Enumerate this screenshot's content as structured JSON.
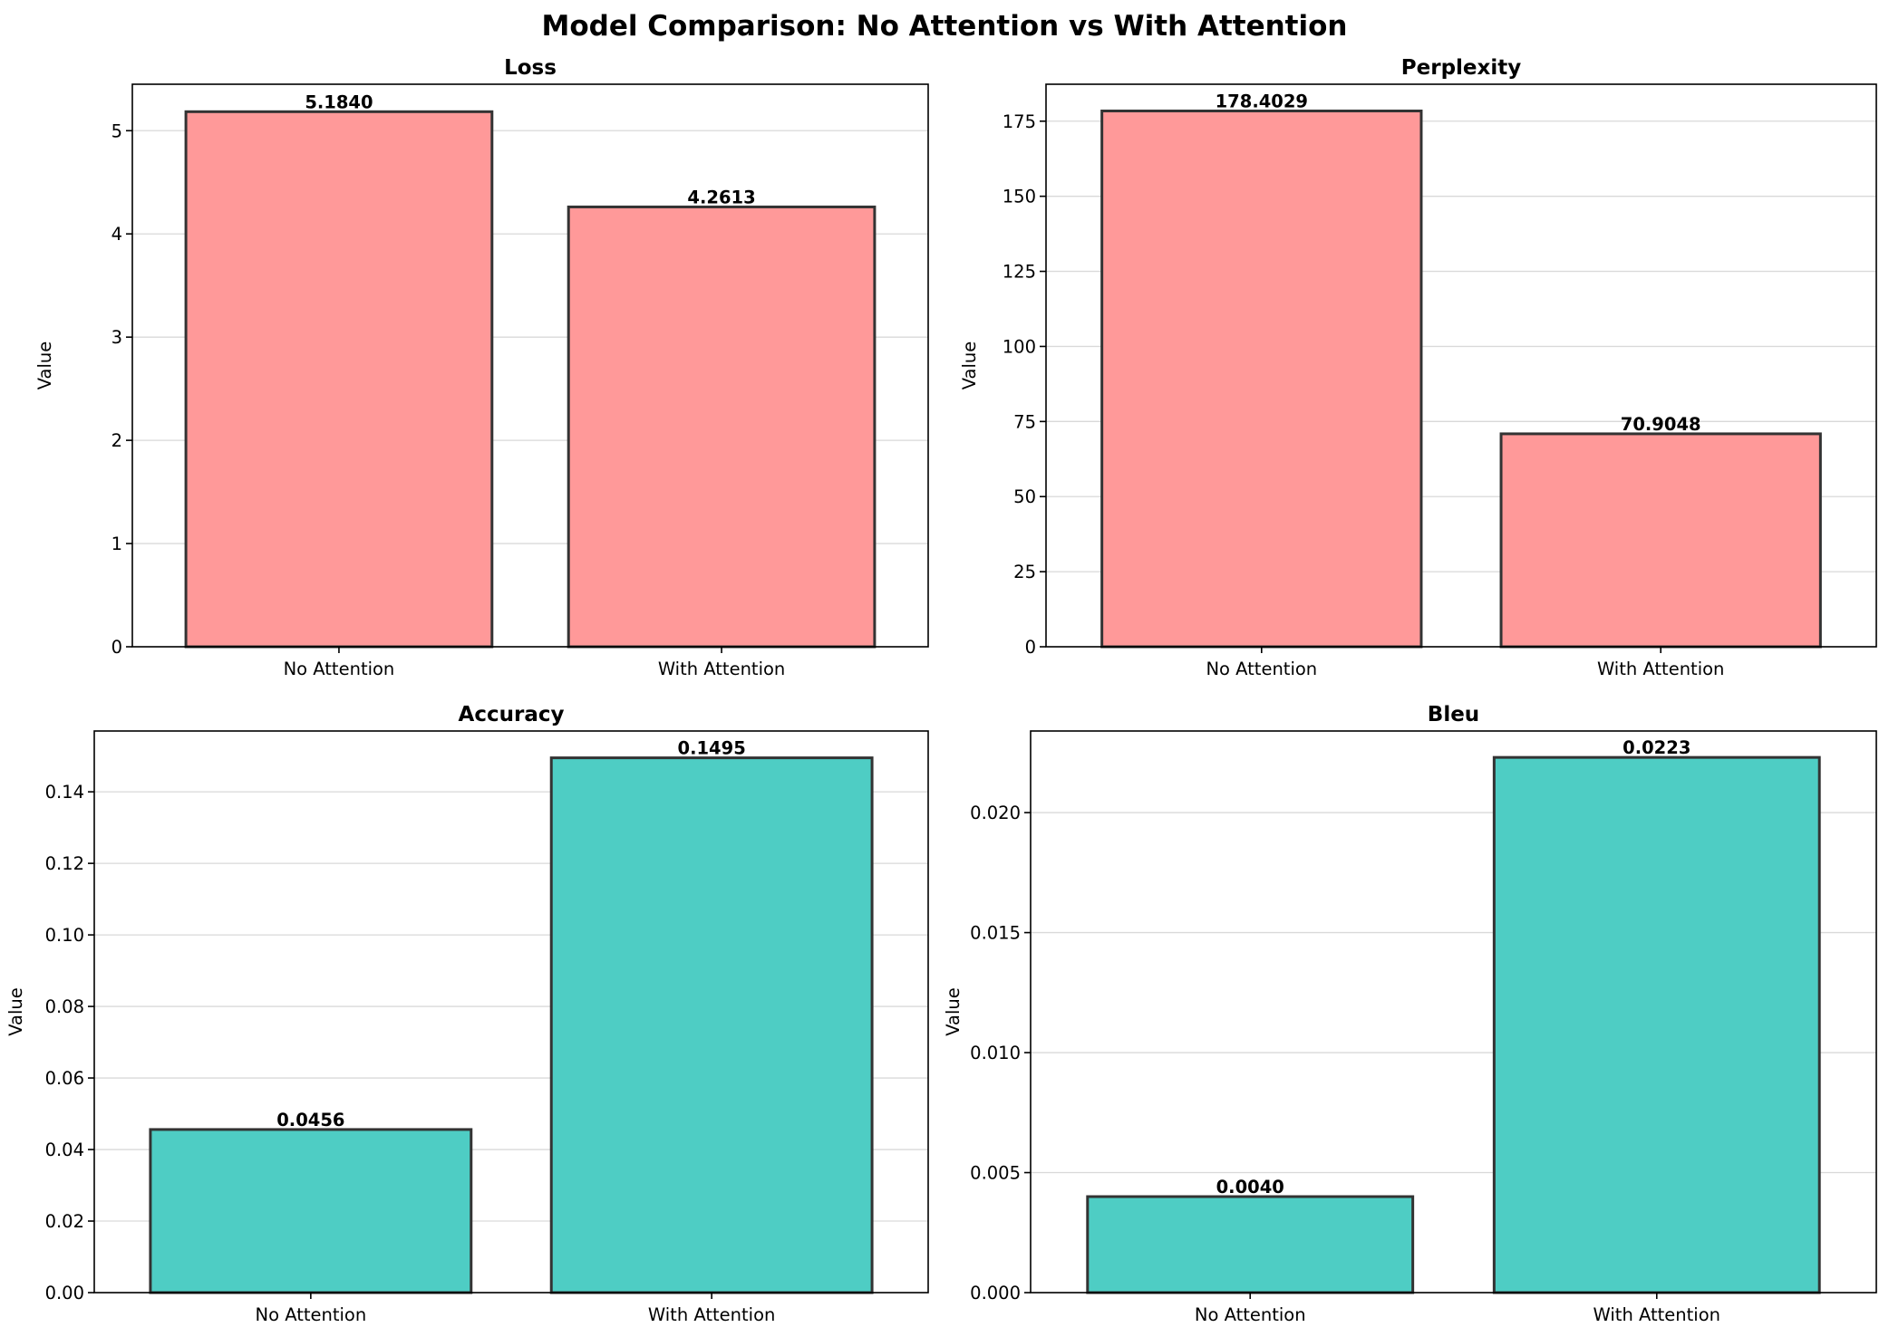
{
  "title": "Model Comparison: No Attention vs With Attention",
  "chart_data": [
    {
      "type": "bar",
      "title": "Loss",
      "ylabel": "Value",
      "categories": [
        "No Attention",
        "With Attention"
      ],
      "values": [
        5.184,
        4.2613
      ],
      "value_labels": [
        "5.1840",
        "4.2613"
      ],
      "ylim": [
        0,
        5.45
      ],
      "yticks": [
        0,
        1,
        2,
        3,
        4,
        5
      ],
      "ytick_labels": [
        "0",
        "1",
        "2",
        "3",
        "4",
        "5"
      ],
      "color": "#ff9999",
      "grid": "y"
    },
    {
      "type": "bar",
      "title": "Perplexity",
      "ylabel": "Value",
      "categories": [
        "No Attention",
        "With Attention"
      ],
      "values": [
        178.4029,
        70.9048
      ],
      "value_labels": [
        "178.4029",
        "70.9048"
      ],
      "ylim": [
        0,
        187.3
      ],
      "yticks": [
        0,
        25,
        50,
        75,
        100,
        125,
        150,
        175
      ],
      "ytick_labels": [
        "0",
        "25",
        "50",
        "75",
        "100",
        "125",
        "150",
        "175"
      ],
      "color": "#ff9999",
      "grid": "y"
    },
    {
      "type": "bar",
      "title": "Accuracy",
      "ylabel": "Value",
      "categories": [
        "No Attention",
        "With Attention"
      ],
      "values": [
        0.0456,
        0.1495
      ],
      "value_labels": [
        "0.0456",
        "0.1495"
      ],
      "ylim": [
        0,
        0.157
      ],
      "yticks": [
        0,
        0.02,
        0.04,
        0.06,
        0.08,
        0.1,
        0.12,
        0.14
      ],
      "ytick_labels": [
        "0.00",
        "0.02",
        "0.04",
        "0.06",
        "0.08",
        "0.10",
        "0.12",
        "0.14"
      ],
      "color": "#4ecdc4",
      "grid": "y"
    },
    {
      "type": "bar",
      "title": "Bleu",
      "ylabel": "Value",
      "categories": [
        "No Attention",
        "With Attention"
      ],
      "values": [
        0.004,
        0.0223
      ],
      "value_labels": [
        "0.0040",
        "0.0223"
      ],
      "ylim": [
        0,
        0.0234
      ],
      "yticks": [
        0,
        0.005,
        0.01,
        0.015,
        0.02
      ],
      "ytick_labels": [
        "0.000",
        "0.005",
        "0.010",
        "0.015",
        "0.020"
      ],
      "color": "#4ecdc4",
      "grid": "y"
    }
  ]
}
